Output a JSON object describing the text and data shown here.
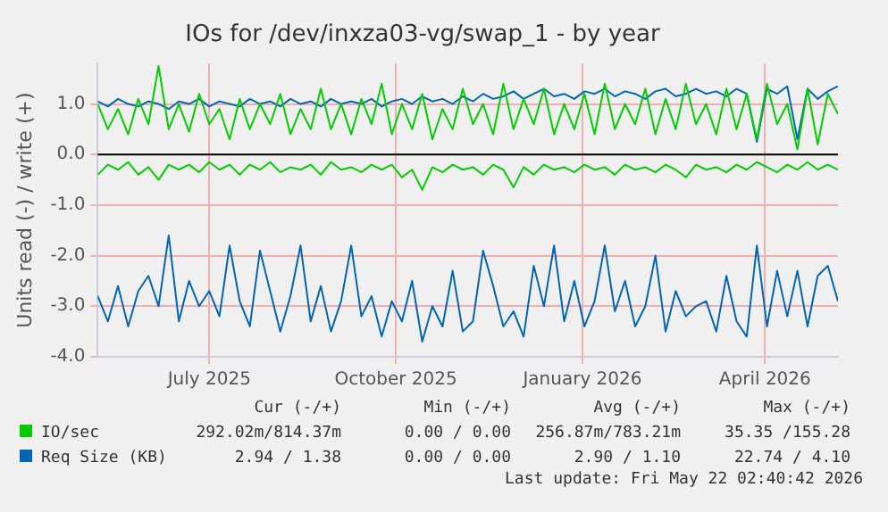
{
  "chart_data": {
    "type": "line",
    "title": "IOs for /dev/inxza03-vg/swap_1 - by year",
    "ylabel": "Units read (-) / write (+)",
    "x": [
      "2025-05-22",
      "2025-05-27",
      "2025-06-01",
      "2025-06-06",
      "2025-06-11",
      "2025-06-16",
      "2025-06-21",
      "2025-06-26",
      "2025-07-01",
      "2025-07-06",
      "2025-07-11",
      "2025-07-16",
      "2025-07-21",
      "2025-07-26",
      "2025-07-31",
      "2025-08-05",
      "2025-08-10",
      "2025-08-15",
      "2025-08-20",
      "2025-08-25",
      "2025-08-30",
      "2025-09-04",
      "2025-09-09",
      "2025-09-14",
      "2025-09-19",
      "2025-09-24",
      "2025-09-29",
      "2025-10-04",
      "2025-10-09",
      "2025-10-14",
      "2025-10-19",
      "2025-10-24",
      "2025-10-29",
      "2025-11-03",
      "2025-11-08",
      "2025-11-13",
      "2025-11-18",
      "2025-11-23",
      "2025-11-28",
      "2025-12-03",
      "2025-12-08",
      "2025-12-13",
      "2025-12-18",
      "2025-12-23",
      "2025-12-28",
      "2026-01-02",
      "2026-01-07",
      "2026-01-12",
      "2026-01-17",
      "2026-01-22",
      "2026-01-27",
      "2026-02-01",
      "2026-02-06",
      "2026-02-11",
      "2026-02-16",
      "2026-02-21",
      "2026-02-26",
      "2026-03-03",
      "2026-03-08",
      "2026-03-13",
      "2026-03-18",
      "2026-03-23",
      "2026-03-28",
      "2026-04-02",
      "2026-04-07",
      "2026-04-12",
      "2026-04-17",
      "2026-04-22",
      "2026-04-27",
      "2026-05-02",
      "2026-05-07",
      "2026-05-12",
      "2026-05-17",
      "2026-05-22"
    ],
    "series": [
      {
        "name": "IO/sec",
        "color": "#00cc00",
        "values": [
          1.0,
          0.5,
          0.9,
          0.4,
          1.1,
          0.6,
          1.75,
          0.5,
          1.0,
          0.45,
          1.2,
          0.6,
          0.9,
          0.3,
          1.1,
          0.5,
          1.0,
          0.6,
          1.2,
          0.4,
          0.9,
          0.5,
          1.3,
          0.5,
          1.0,
          0.4,
          1.1,
          0.6,
          1.4,
          0.4,
          1.0,
          0.5,
          1.2,
          0.3,
          0.9,
          0.5,
          1.3,
          0.6,
          1.0,
          0.4,
          1.4,
          0.5,
          1.1,
          0.6,
          1.3,
          0.4,
          1.0,
          0.5,
          1.2,
          0.4,
          1.4,
          0.5,
          1.0,
          0.6,
          1.3,
          0.4,
          1.1,
          0.5,
          1.4,
          0.6,
          1.0,
          0.4,
          1.3,
          0.5,
          1.2,
          0.3,
          1.4,
          0.6,
          1.0,
          0.1,
          1.3,
          0.2,
          1.2,
          0.8
        ]
      },
      {
        "color": "#00cc00",
        "values": [
          -0.4,
          -0.2,
          -0.3,
          -0.15,
          -0.4,
          -0.25,
          -0.5,
          -0.2,
          -0.3,
          -0.2,
          -0.35,
          -0.15,
          -0.3,
          -0.2,
          -0.4,
          -0.2,
          -0.3,
          -0.15,
          -0.35,
          -0.25,
          -0.3,
          -0.2,
          -0.4,
          -0.15,
          -0.3,
          -0.25,
          -0.35,
          -0.2,
          -0.3,
          -0.2,
          -0.45,
          -0.3,
          -0.7,
          -0.25,
          -0.35,
          -0.2,
          -0.3,
          -0.25,
          -0.4,
          -0.2,
          -0.3,
          -0.65,
          -0.25,
          -0.4,
          -0.2,
          -0.3,
          -0.25,
          -0.35,
          -0.2,
          -0.3,
          -0.25,
          -0.4,
          -0.2,
          -0.3,
          -0.25,
          -0.35,
          -0.2,
          -0.3,
          -0.45,
          -0.2,
          -0.3,
          -0.25,
          -0.35,
          -0.2,
          -0.3,
          -0.15,
          -0.25,
          -0.35,
          -0.2,
          -0.3,
          -0.15,
          -0.3,
          -0.2,
          -0.3
        ]
      },
      {
        "name": "Req Size (KB)",
        "color": "#0066b3",
        "values": [
          1.05,
          0.95,
          1.1,
          1.0,
          0.95,
          1.05,
          1.0,
          0.9,
          1.05,
          1.0,
          1.1,
          0.95,
          1.05,
          1.0,
          0.95,
          1.1,
          1.0,
          1.05,
          0.95,
          1.1,
          1.0,
          1.05,
          0.95,
          1.1,
          1.0,
          1.05,
          1.0,
          1.1,
          0.95,
          1.05,
          1.1,
          1.0,
          1.15,
          1.05,
          1.1,
          1.0,
          1.15,
          1.05,
          1.2,
          1.1,
          1.15,
          1.25,
          1.1,
          1.2,
          1.3,
          1.15,
          1.2,
          1.1,
          1.25,
          1.2,
          1.3,
          1.15,
          1.25,
          1.2,
          1.1,
          1.25,
          1.3,
          1.15,
          1.2,
          1.3,
          1.2,
          1.25,
          1.15,
          1.3,
          1.2,
          0.25,
          1.3,
          1.2,
          1.35,
          0.3,
          1.3,
          1.1,
          1.25,
          1.35
        ]
      },
      {
        "color": "#0066b3",
        "values": [
          -2.8,
          -3.3,
          -2.6,
          -3.4,
          -2.7,
          -2.4,
          -3.0,
          -1.6,
          -3.3,
          -2.5,
          -3.0,
          -2.7,
          -3.2,
          -1.8,
          -2.9,
          -3.4,
          -1.9,
          -2.7,
          -3.5,
          -2.8,
          -1.8,
          -3.3,
          -2.6,
          -3.5,
          -2.9,
          -1.8,
          -3.2,
          -2.8,
          -3.6,
          -2.9,
          -3.3,
          -2.5,
          -3.7,
          -3.0,
          -3.4,
          -2.3,
          -3.5,
          -3.3,
          -1.9,
          -2.6,
          -3.4,
          -3.1,
          -3.6,
          -2.2,
          -3.0,
          -1.8,
          -3.3,
          -2.5,
          -3.4,
          -2.9,
          -1.8,
          -3.1,
          -2.5,
          -3.4,
          -3.0,
          -2.0,
          -3.5,
          -2.7,
          -3.2,
          -3.0,
          -2.9,
          -3.5,
          -2.4,
          -3.3,
          -3.6,
          -1.8,
          -3.4,
          -2.3,
          -3.2,
          -2.3,
          -3.4,
          -2.4,
          -2.2,
          -2.9
        ]
      }
    ],
    "xlim": [
      "2025-05-22",
      "2026-05-22"
    ],
    "xticks": [
      {
        "value": "2025-07-16",
        "label": "July 2025"
      },
      {
        "value": "2025-10-16",
        "label": "October 2025"
      },
      {
        "value": "2026-01-16",
        "label": "January 2026"
      },
      {
        "value": "2026-04-16",
        "label": "April 2026"
      }
    ],
    "ylim": [
      -4,
      1.8
    ],
    "yticks": [
      {
        "value": -4,
        "label": "-4.0"
      },
      {
        "value": -3,
        "label": "-3.0"
      },
      {
        "value": -2,
        "label": "-2.0"
      },
      {
        "value": -1,
        "label": "-1.0"
      },
      {
        "value": 0,
        "label": "0.0"
      },
      {
        "value": 1,
        "label": "1.0"
      }
    ],
    "ref_lines": [
      {
        "axis": "y",
        "value": 0,
        "color": "#000000"
      }
    ],
    "grid": true,
    "legend": "bottom",
    "marker": "none",
    "line_style": "solid",
    "annotations": [
      "Cur (-/+)",
      "Min (-/+)",
      "Avg (-/+)",
      "Max (-/+)",
      "292.02m/814.37m",
      "0.00 / 0.00",
      "256.87m/783.21m",
      "35.35 /155.28",
      "2.94 / 1.38",
      "0.00 / 0.00",
      "2.90 / 1.10",
      "22.74 / 4.10",
      "Last update: Fri May 22 02:40:42 2026"
    ]
  }
}
